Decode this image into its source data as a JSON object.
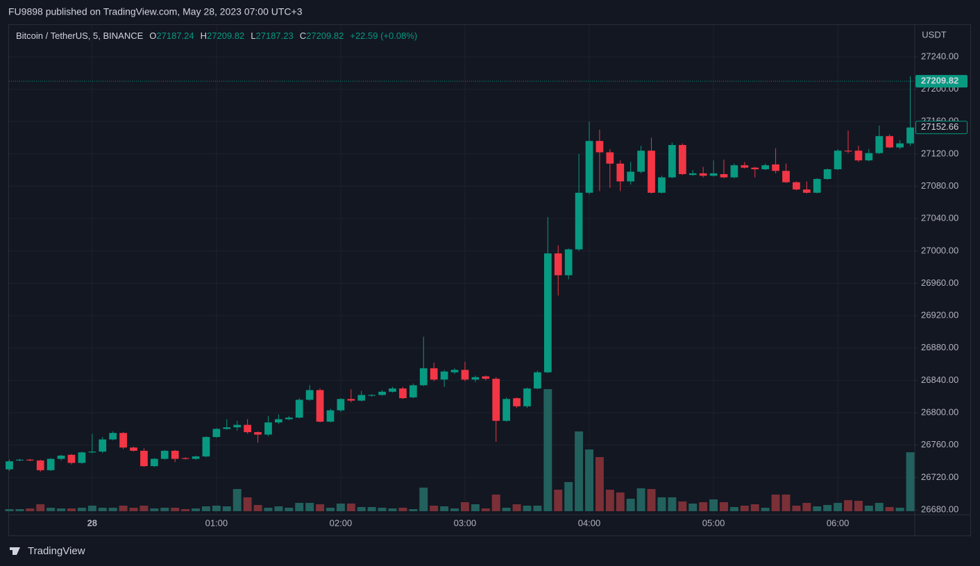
{
  "header": "FU9898 published on TradingView.com, May 28, 2023 07:00 UTC+3",
  "footer": "TradingView",
  "chart_data": {
    "type": "candlestick",
    "symbol": "Bitcoin / TetherUS, 5, BINANCE",
    "legend": [
      {
        "label": "O",
        "value": 27187.24
      },
      {
        "label": "H",
        "value": 27209.82
      },
      {
        "label": "L",
        "value": 27187.23
      },
      {
        "label": "C",
        "value": 27209.82
      }
    ],
    "change": "+22.59 (+0.08%)",
    "y_unit": "USDT",
    "up_color": "#089981",
    "down_color": "#f23645",
    "volume_up_color": "#22615d",
    "volume_down_color": "#7a3036",
    "grid": true,
    "last_price": 27209.82,
    "marker_price": 27152.66,
    "ylim": [
      26674,
      27279.4
    ],
    "yticks": [
      {
        "value": 27240,
        "label": "27240.00"
      },
      {
        "value": 27200,
        "label": "27200.00"
      },
      {
        "value": 27160,
        "label": "27160.00"
      },
      {
        "value": 27120,
        "label": "27120.00"
      },
      {
        "value": 27080,
        "label": "27080.00"
      },
      {
        "value": 27040,
        "label": "27040.00"
      },
      {
        "value": 27000,
        "label": "27000.00"
      },
      {
        "value": 26960,
        "label": "26960.00"
      },
      {
        "value": 26920,
        "label": "26920.00"
      },
      {
        "value": 26880,
        "label": "26880.00"
      },
      {
        "value": 26840,
        "label": "26840.00"
      },
      {
        "value": 26800,
        "label": "26800.00"
      },
      {
        "value": 26760,
        "label": "26760.00"
      },
      {
        "value": 26720,
        "label": "26720.00"
      },
      {
        "value": 26680,
        "label": "26680.00"
      }
    ],
    "categories": [
      null,
      null,
      null,
      null,
      null,
      null,
      null,
      null,
      "28",
      null,
      null,
      null,
      null,
      null,
      null,
      null,
      null,
      null,
      null,
      null,
      "01:00",
      null,
      null,
      null,
      null,
      null,
      null,
      null,
      null,
      null,
      null,
      null,
      "02:00",
      null,
      null,
      null,
      null,
      null,
      null,
      null,
      null,
      null,
      null,
      null,
      "03:00",
      null,
      null,
      null,
      null,
      null,
      null,
      null,
      null,
      null,
      null,
      null,
      "04:00",
      null,
      null,
      null,
      null,
      null,
      null,
      null,
      null,
      null,
      null,
      null,
      "05:00",
      null,
      null,
      null,
      null,
      null,
      null,
      null,
      null,
      null,
      null,
      null,
      "06:00",
      null,
      null,
      null,
      null,
      null,
      null,
      null
    ],
    "open": [
      26730,
      26741,
      26742,
      26741,
      26729,
      26743,
      26748,
      26738,
      26751,
      26752,
      26767,
      26775,
      26757,
      26753,
      26734,
      26743,
      26753,
      26744,
      26743,
      26746,
      26770,
      26780,
      26782,
      26785,
      26776,
      26773,
      26788,
      26792,
      26794,
      26816,
      26828,
      26789,
      26803,
      26817,
      26815,
      26821,
      26822,
      26826,
      26830,
      26819,
      26834,
      26855,
      26841,
      26850,
      26853,
      26841,
      26845,
      26842,
      26790,
      26818,
      26808,
      26830,
      26850,
      26997,
      26970,
      27002,
      27072,
      27136,
      27122,
      27108,
      27086,
      27098,
      27124,
      27072,
      27091,
      27131,
      27094,
      27096,
      27093,
      27095,
      27091,
      27106,
      27103,
      27101,
      27107,
      27099,
      27085,
      27076,
      27072,
      27089,
      27101,
      27124,
      27124,
      27112,
      27121,
      27142,
      27128,
      27133
    ],
    "high": [
      26742,
      26743,
      26743,
      26742,
      26744,
      26748,
      26749,
      26752,
      26774,
      26770,
      26777,
      26776,
      26758,
      26756,
      26744,
      26754,
      26754,
      26745,
      26747,
      26771,
      26781,
      26792,
      26790,
      26792,
      26777,
      26796,
      26798,
      26796,
      26818,
      26834,
      26830,
      26805,
      26818,
      26829,
      26827,
      26823,
      26828,
      26832,
      26832,
      26836,
      26894,
      26862,
      26853,
      26855,
      26863,
      26846,
      26846,
      26844,
      26819,
      26819,
      26831,
      26852,
      27042,
      27007,
      27003,
      27120,
      27160,
      27150,
      27126,
      27112,
      27110,
      27130,
      27140,
      27093,
      27134,
      27133,
      27100,
      27104,
      27112,
      27113,
      27108,
      27110,
      27104,
      27108,
      27127,
      27108,
      27086,
      27086,
      27090,
      27102,
      27126,
      27149,
      27130,
      27126,
      27155,
      27144,
      27137,
      27216
    ],
    "low": [
      26728,
      26740,
      26740,
      26727,
      26728,
      26741,
      26736,
      26737,
      26750,
      26750,
      26766,
      26755,
      26752,
      26733,
      26733,
      26742,
      26739,
      26742,
      26742,
      26745,
      26769,
      26779,
      26778,
      26774,
      26763,
      26771,
      26786,
      26791,
      26793,
      26815,
      26788,
      26788,
      26801,
      26813,
      26814,
      26820,
      26821,
      26825,
      26817,
      26818,
      26833,
      26839,
      26832,
      26848,
      26839,
      26838,
      26840,
      26764,
      26789,
      26806,
      26806,
      26829,
      26849,
      26945,
      26965,
      27000,
      27070,
      27074,
      27078,
      27074,
      27082,
      27096,
      27071,
      27071,
      27090,
      27094,
      27093,
      27091,
      27092,
      27090,
      27090,
      27102,
      27091,
      27100,
      27096,
      27084,
      27075,
      27071,
      27071,
      27088,
      27100,
      27121,
      27110,
      27111,
      27120,
      27127,
      27126,
      27130
    ],
    "close": [
      26740,
      26742,
      26741,
      26729,
      26743,
      26747,
      26738,
      26751,
      26752,
      26767,
      26775,
      26757,
      26753,
      26734,
      26743,
      26753,
      26743,
      26743,
      26746,
      26770,
      26780,
      26782,
      26785,
      26776,
      26773,
      26788,
      26792,
      26794,
      26816,
      26828,
      26789,
      26803,
      26817,
      26815,
      26822,
      26822,
      26826,
      26830,
      26818,
      26834,
      26855,
      26841,
      26851,
      26853,
      26841,
      26844,
      26842,
      26790,
      26817,
      26808,
      26830,
      26850,
      26997,
      26970,
      27002,
      27072,
      27136,
      27122,
      27108,
      27086,
      27098,
      27124,
      27072,
      27091,
      27131,
      27095,
      27096,
      27093,
      27096,
      27091,
      27106,
      27103,
      27101,
      27106,
      27099,
      27085,
      27076,
      27072,
      27089,
      27101,
      27124,
      27123,
      27112,
      27121,
      27142,
      27128,
      27133,
      27152.66
    ],
    "volume": [
      3,
      3,
      4,
      10,
      5,
      4,
      4,
      5,
      8,
      5,
      5,
      8,
      5,
      8,
      4,
      5,
      5,
      3,
      4,
      7,
      8,
      7,
      32,
      20,
      9,
      5,
      7,
      5,
      12,
      12,
      10,
      5,
      11,
      11,
      6,
      6,
      5,
      4,
      5,
      3,
      34,
      8,
      7,
      4,
      13,
      10,
      4,
      24,
      5,
      10,
      8,
      8,
      176,
      31,
      42,
      115,
      89,
      78,
      31,
      27,
      18,
      33,
      32,
      20,
      20,
      14,
      11,
      13,
      17,
      13,
      6,
      8,
      10,
      5,
      24,
      24,
      8,
      12,
      7,
      9,
      12,
      16,
      15,
      8,
      12,
      6,
      5,
      85
    ]
  }
}
